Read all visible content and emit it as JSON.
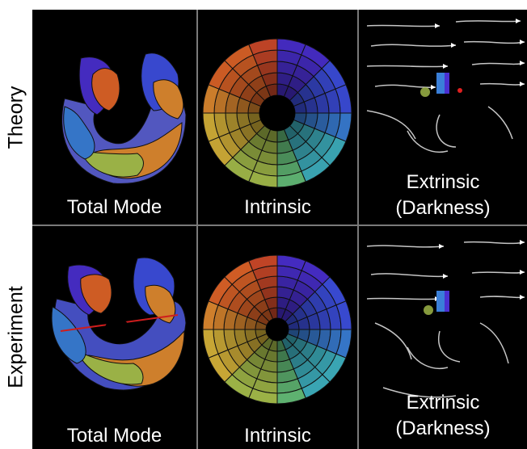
{
  "rows": [
    {
      "label": "Theory"
    },
    {
      "label": "Experiment"
    }
  ],
  "captions": {
    "total": "Total Mode",
    "intrinsic": "Intrinsic",
    "extrinsic_line1": "Extrinsic",
    "extrinsic_line2": "(Darkness)"
  },
  "colors": {
    "wheel": [
      "#4a2fd0",
      "#3d4fe0",
      "#3a7fd8",
      "#3fb3c2",
      "#66c07a",
      "#a8c04c",
      "#d8b43a",
      "#e08a30",
      "#e06428",
      "#d04a2a"
    ],
    "divider": "#7a7a7a",
    "accent_red": "#e02020"
  }
}
